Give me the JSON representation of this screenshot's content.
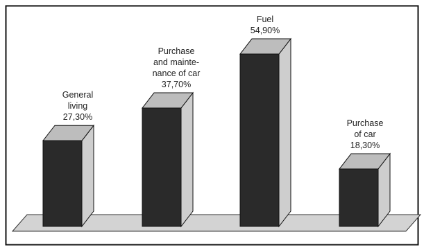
{
  "chart_data": {
    "type": "bar",
    "categories": [
      "General living",
      "Purchase and maintenance of car",
      "Fuel",
      "Purchase of car"
    ],
    "values": [
      27.3,
      37.7,
      54.9,
      18.3
    ],
    "value_labels": [
      "27,30%",
      "37,70%",
      "54,90%",
      "18,30%"
    ],
    "label_lines": [
      [
        "General",
        "living",
        "27,30%"
      ],
      [
        "Purchase",
        "and mainte-",
        "nance of car",
        "37,70%"
      ],
      [
        "Fuel",
        "54,90%"
      ],
      [
        "Purchase",
        "of car",
        "18,30%"
      ]
    ],
    "ylim": [
      0,
      60
    ],
    "grid": false,
    "bar_style": "3d",
    "colors": {
      "bar_front": "#2a2a2a",
      "bar_top": "#bdbdbd",
      "bar_side": "#cecece",
      "floor": "#d3d3d3",
      "border": "#111111",
      "text": "#1f1f1f"
    }
  }
}
